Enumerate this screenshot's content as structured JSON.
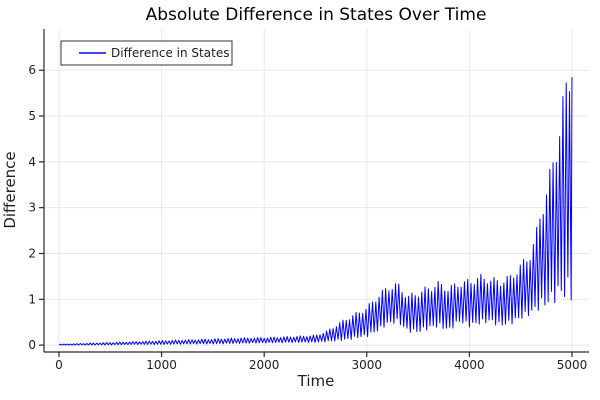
{
  "colors": {
    "line": "#0000ff",
    "grid": "#e8e8e8",
    "axis": "#2a2a2a",
    "tick_text": "#1f1f1f",
    "title_text": "#000000",
    "background": "#ffffff"
  },
  "chart_data": {
    "type": "line",
    "title": "Absolute Difference in States Over Time",
    "xlabel": "Time",
    "ylabel": "Difference",
    "x_ticks": [
      0,
      1000,
      2000,
      3000,
      4000,
      5000
    ],
    "y_ticks": [
      0,
      1,
      2,
      3,
      4,
      5,
      6
    ],
    "xlim": [
      -146,
      5166
    ],
    "ylim": [
      -0.15,
      6.9
    ],
    "grid": true,
    "legend_position": "top-left",
    "series": [
      {
        "name": "Difference in States",
        "color": "#0000ff",
        "line_width": 1,
        "description": "High-frequency oscillatory signal; values swing between lower and upper envelopes each cycle",
        "oscillation_period": 32,
        "envelope_t": [
          0,
          250,
          500,
          750,
          1000,
          1250,
          1500,
          1750,
          2000,
          2250,
          2500,
          2600,
          2700,
          2800,
          2900,
          3000,
          3100,
          3200,
          3300,
          3400,
          3500,
          3600,
          3700,
          3800,
          3900,
          4000,
          4100,
          4200,
          4300,
          4400,
          4500,
          4600,
          4650,
          4700,
          4750,
          4800,
          4850,
          4900,
          4950,
          5000
        ],
        "envelope_upper": [
          0.02,
          0.04,
          0.06,
          0.08,
          0.1,
          0.12,
          0.14,
          0.16,
          0.17,
          0.19,
          0.22,
          0.3,
          0.45,
          0.6,
          0.72,
          0.85,
          1.1,
          1.3,
          1.38,
          1.1,
          1.2,
          1.3,
          1.4,
          1.3,
          1.4,
          1.45,
          1.55,
          1.5,
          1.45,
          1.55,
          1.8,
          2.1,
          2.5,
          3.1,
          3.5,
          4.0,
          4.6,
          5.3,
          6.0,
          6.65
        ],
        "envelope_lower": [
          0.0,
          0.0,
          0.0,
          0.01,
          0.01,
          0.02,
          0.02,
          0.03,
          0.04,
          0.05,
          0.05,
          0.06,
          0.07,
          0.08,
          0.12,
          0.15,
          0.25,
          0.4,
          0.45,
          0.25,
          0.22,
          0.3,
          0.35,
          0.25,
          0.45,
          0.35,
          0.4,
          0.45,
          0.35,
          0.4,
          0.5,
          0.6,
          0.65,
          0.7,
          0.7,
          0.75,
          0.8,
          0.8,
          0.75,
          0.7
        ]
      }
    ]
  }
}
